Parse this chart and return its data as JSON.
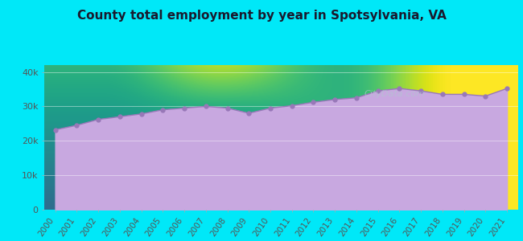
{
  "title": "County total employment by year in Spotsylvania, VA",
  "years": [
    2000,
    2001,
    2002,
    2003,
    2004,
    2005,
    2006,
    2007,
    2008,
    2009,
    2010,
    2011,
    2012,
    2013,
    2014,
    2015,
    2016,
    2017,
    2018,
    2019,
    2020,
    2021
  ],
  "values": [
    23200,
    24500,
    26200,
    27000,
    27800,
    29000,
    29500,
    30000,
    29500,
    28000,
    29500,
    30200,
    31200,
    32000,
    32500,
    34500,
    35200,
    34500,
    33500,
    33500,
    33000,
    35200
  ],
  "ylim": [
    0,
    42000
  ],
  "yticks": [
    0,
    10000,
    20000,
    30000,
    40000
  ],
  "ytick_labels": [
    "0",
    "10k",
    "20k",
    "30k",
    "40k"
  ],
  "fill_color": "#c8a8e0",
  "fill_alpha": 1.0,
  "line_color": "#9878b8",
  "marker_color": "#9878b8",
  "background_outer": "#00e8f8",
  "background_inner_top": "#e0f0e0",
  "background_inner_bottom": "#c8a8e0",
  "title_fontsize": 11,
  "title_fontweight": "bold",
  "title_color": "#1a1a2e",
  "tick_color": "#555555",
  "tick_fontsize": 7.5,
  "ytick_fontsize": 8
}
